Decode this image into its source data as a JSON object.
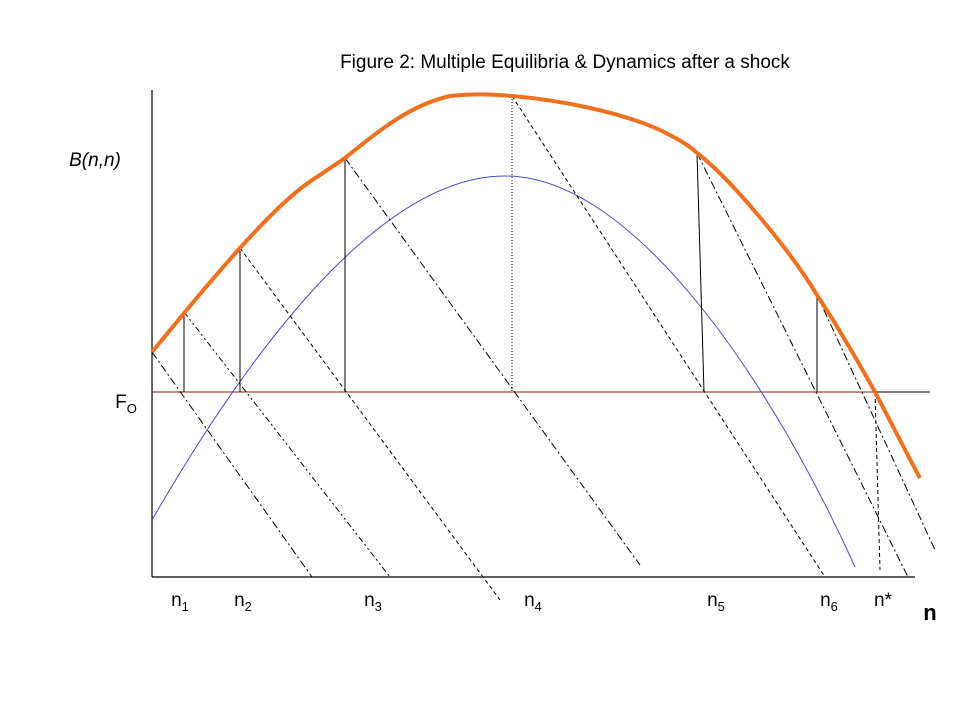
{
  "title": "Figure 2: Multiple Equilibria & Dynamics after a shock",
  "y_axis_label": "B(n,n)",
  "x_axis_label": "n",
  "fixed_cost_label": {
    "base": "F",
    "sub": "O"
  },
  "x_labels": [
    {
      "base": "n",
      "sub": "1"
    },
    {
      "base": "n",
      "sub": "2"
    },
    {
      "base": "n",
      "sub": "3"
    },
    {
      "base": "n",
      "sub": "4"
    },
    {
      "base": "n",
      "sub": "5"
    },
    {
      "base": "n",
      "sub": "6"
    },
    {
      "base": "n*"
    }
  ]
}
